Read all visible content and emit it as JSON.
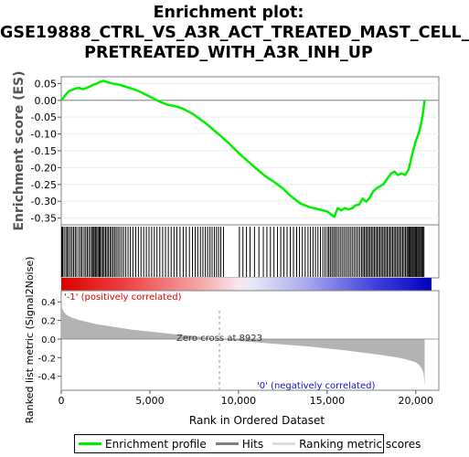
{
  "title_lines": [
    "Enrichment plot:",
    "GSE19888_CTRL_VS_A3R_ACT_TREATED_MAST_CELL_",
    "PRETREATED_WITH_A3R_INH_UP"
  ],
  "colors": {
    "enrichment": "#00ee00",
    "hits": "#000000",
    "metric": "#b3b3b3",
    "pos_label": "#dd0000",
    "neg_label": "#1111cc",
    "zero_line": "#999999"
  },
  "chart_data": {
    "type": "line",
    "xlabel": "Rank in Ordered Dataset",
    "x_ticks": [
      0,
      5000,
      10000,
      15000,
      20000
    ],
    "x_tick_labels": [
      "0",
      "5,000",
      "10,000",
      "15,000",
      "20,000"
    ],
    "xlim": [
      0,
      21300
    ],
    "n_genes": 20500,
    "es_panel": {
      "ylabel": "Enrichment score (ES)",
      "ylim": [
        -0.37,
        0.07
      ],
      "y_ticks": [
        0.05,
        0.0,
        -0.05,
        -0.1,
        -0.15,
        -0.2,
        -0.25,
        -0.3,
        -0.35
      ],
      "y_tick_labels": [
        "0.05",
        "0.00",
        "-0.05",
        "-0.10",
        "-0.15",
        "-0.20",
        "-0.25",
        "-0.30",
        "-0.35"
      ],
      "series": [
        {
          "name": "Enrichment profile",
          "x": [
            0,
            150,
            300,
            450,
            600,
            800,
            1000,
            1200,
            1400,
            1600,
            1800,
            2000,
            2200,
            2400,
            2600,
            2800,
            3000,
            3300,
            3600,
            3900,
            4200,
            4500,
            4800,
            5100,
            5400,
            5700,
            6000,
            6300,
            6600,
            6900,
            7200,
            7500,
            7800,
            8100,
            8400,
            8700,
            9000,
            9500,
            10000,
            10500,
            11000,
            11500,
            12000,
            12500,
            13000,
            13500,
            14000,
            14300,
            14600,
            14900,
            15000,
            15200,
            15400,
            15600,
            15800,
            16000,
            16200,
            16400,
            16600,
            16800,
            17000,
            17200,
            17400,
            17600,
            17800,
            18000,
            18200,
            18400,
            18600,
            18800,
            19000,
            19200,
            19400,
            19600,
            19800,
            20000,
            20100,
            20200,
            20300,
            20400,
            20450,
            20500
          ],
          "y": [
            0.0,
            0.01,
            0.02,
            0.028,
            0.031,
            0.035,
            0.037,
            0.033,
            0.036,
            0.041,
            0.046,
            0.05,
            0.055,
            0.058,
            0.054,
            0.051,
            0.049,
            0.046,
            0.041,
            0.036,
            0.031,
            0.024,
            0.016,
            0.008,
            0.0,
            -0.007,
            -0.013,
            -0.016,
            -0.02,
            -0.026,
            -0.034,
            -0.043,
            -0.055,
            -0.066,
            -0.079,
            -0.093,
            -0.106,
            -0.13,
            -0.156,
            -0.18,
            -0.203,
            -0.225,
            -0.242,
            -0.262,
            -0.287,
            -0.307,
            -0.317,
            -0.321,
            -0.325,
            -0.329,
            -0.33,
            -0.338,
            -0.346,
            -0.32,
            -0.327,
            -0.32,
            -0.324,
            -0.321,
            -0.312,
            -0.31,
            -0.292,
            -0.301,
            -0.29,
            -0.27,
            -0.261,
            -0.255,
            -0.248,
            -0.232,
            -0.218,
            -0.212,
            -0.222,
            -0.217,
            -0.222,
            -0.205,
            -0.16,
            -0.12,
            -0.108,
            -0.09,
            -0.07,
            -0.04,
            -0.02,
            0.0
          ]
        }
      ]
    },
    "hits_panel": {
      "name": "Hits",
      "ranks": [
        30,
        80,
        160,
        260,
        340,
        420,
        520,
        610,
        700,
        790,
        880,
        1000,
        1100,
        1180,
        1290,
        1380,
        1470,
        1560,
        1650,
        1740,
        1800,
        1860,
        1930,
        2000,
        2070,
        2140,
        2200,
        2270,
        2350,
        2420,
        2500,
        2580,
        2660,
        2750,
        2830,
        2920,
        3010,
        3100,
        3200,
        3300,
        3410,
        3520,
        3640,
        3770,
        3900,
        4040,
        4200,
        4350,
        4500,
        4650,
        4800,
        4950,
        5100,
        5250,
        5400,
        5560,
        5720,
        5880,
        6040,
        6200,
        6360,
        6520,
        6700,
        6880,
        7050,
        7230,
        7400,
        7560,
        7700,
        7850,
        7990,
        8130,
        8260,
        8390,
        8510,
        8640,
        8760,
        8880,
        9000,
        9150,
        10050,
        10250,
        10450,
        10650,
        10900,
        11150,
        11400,
        11600,
        11800,
        12000,
        12200,
        12380,
        12560,
        12740,
        12920,
        13100,
        13280,
        13440,
        13600,
        13760,
        13920,
        14060,
        14200,
        14340,
        14480,
        14620,
        14760,
        14880,
        15000,
        15090,
        15180,
        15270,
        15360,
        15450,
        15540,
        15640,
        15740,
        15840,
        15940,
        16040,
        16140,
        16240,
        16340,
        16440,
        16540,
        16640,
        16740,
        16840,
        16940,
        17020,
        17100,
        17180,
        17260,
        17340,
        17420,
        17500,
        17580,
        17660,
        17740,
        17820,
        17900,
        17980,
        18060,
        18140,
        18220,
        18300,
        18380,
        18460,
        18540,
        18620,
        18700,
        18780,
        18860,
        18940,
        19020,
        19100,
        19180,
        19260,
        19340,
        19420,
        19500,
        19560,
        19620,
        19680,
        19740,
        19800,
        19860,
        19920,
        19980,
        20040,
        20100,
        20160,
        20220,
        20280,
        20340,
        20400,
        20460
      ]
    },
    "metric_panel": {
      "name": "Ranking metric scores",
      "ylabel": "Ranked list metric (Signal2Noise)",
      "ylim": [
        -0.55,
        0.52
      ],
      "y_ticks": [
        0.4,
        0.2,
        0.0,
        -0.2,
        -0.4
      ],
      "y_tick_labels": [
        "0.4",
        "0.2",
        "0.0",
        "-0.2",
        "-0.4"
      ],
      "x": [
        0,
        50,
        150,
        300,
        600,
        1000,
        2000,
        3000,
        4000,
        5000,
        6000,
        7000,
        8000,
        8923,
        10000,
        11000,
        12000,
        13000,
        14000,
        15000,
        16000,
        17000,
        18000,
        19000,
        19500,
        20000,
        20200,
        20350,
        20450,
        20500
      ],
      "y": [
        0.46,
        0.33,
        0.29,
        0.26,
        0.23,
        0.205,
        0.16,
        0.13,
        0.1,
        0.08,
        0.06,
        0.04,
        0.02,
        0.0,
        -0.02,
        -0.035,
        -0.05,
        -0.065,
        -0.08,
        -0.1,
        -0.12,
        -0.145,
        -0.17,
        -0.2,
        -0.22,
        -0.25,
        -0.28,
        -0.32,
        -0.38,
        -0.5
      ],
      "zero_cross_label": "Zero cross at 8923",
      "zero_cross_rank": 8923,
      "pos_label": "'-1' (positively correlated)",
      "neg_label": "'0' (negatively correlated)"
    },
    "legend": [
      {
        "name": "Enrichment profile"
      },
      {
        "name": "Hits"
      },
      {
        "name": "Ranking metric scores"
      }
    ]
  }
}
